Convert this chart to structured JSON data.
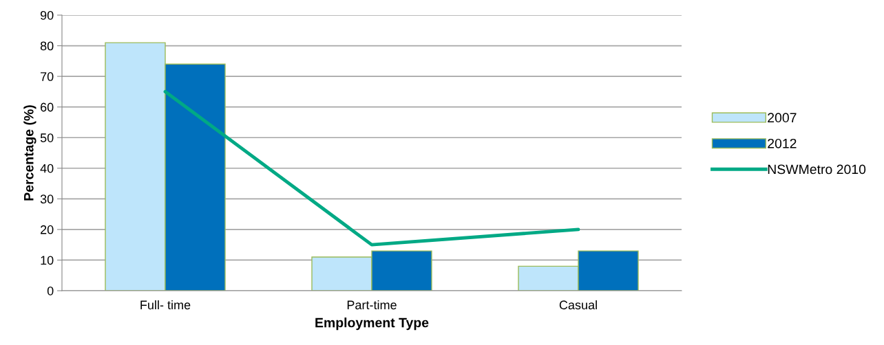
{
  "chart_data": {
    "type": "bar",
    "xlabel": "Employment Type",
    "ylabel": "Percentage (%)",
    "categories": [
      "Full- time",
      "Part-time",
      "Casual"
    ],
    "series": [
      {
        "name": "2007",
        "color": "#bee5fb",
        "values": [
          81,
          11,
          8
        ]
      },
      {
        "name": "2012",
        "color": "#0070bc",
        "values": [
          74,
          13,
          13
        ]
      },
      {
        "name": "NSWMetro 2010",
        "type": "line",
        "color": "#00a985",
        "values": [
          65,
          15,
          20
        ]
      }
    ],
    "ylim": [
      0,
      90
    ],
    "yticks": [
      0,
      10,
      20,
      30,
      40,
      50,
      60,
      70,
      80,
      90
    ],
    "grid": "y",
    "legend": "right",
    "marker": "none"
  }
}
